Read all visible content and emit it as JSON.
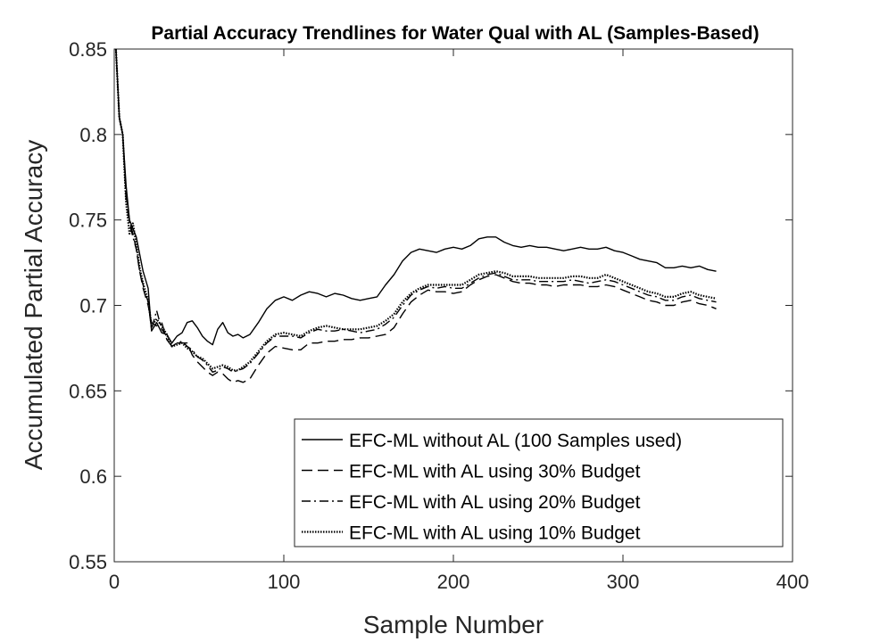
{
  "chart_data": {
    "type": "line",
    "title": "Partial Accuracy Trendlines for Water Qual with AL (Samples-Based)",
    "xlabel": "Sample Number",
    "ylabel": "Accumulated Partial Accuracy",
    "xlim": [
      0,
      400
    ],
    "ylim": [
      0.55,
      0.85
    ],
    "xticks": [
      0,
      100,
      200,
      300,
      400
    ],
    "xtick_labels": [
      "0",
      "100",
      "200",
      "300",
      "400"
    ],
    "yticks": [
      0.55,
      0.6,
      0.65,
      0.7,
      0.75,
      0.8,
      0.85
    ],
    "ytick_labels": [
      "0.55",
      "0.6",
      "0.65",
      "0.7",
      "0.75",
      "0.8",
      "0.85"
    ],
    "grid": false,
    "legend_position": "bottom-right",
    "series": [
      {
        "name": "EFC-ML without AL (100 Samples used)",
        "style": "solid",
        "color": "#000000",
        "x": [
          1,
          3,
          5,
          7,
          9,
          11,
          13,
          15,
          17,
          20,
          22,
          25,
          28,
          31,
          34,
          37,
          40,
          43,
          46,
          49,
          52,
          55,
          58,
          61,
          64,
          67,
          70,
          73,
          76,
          80,
          85,
          90,
          95,
          100,
          105,
          110,
          115,
          120,
          125,
          130,
          135,
          140,
          145,
          150,
          155,
          160,
          165,
          170,
          175,
          180,
          185,
          190,
          195,
          200,
          205,
          210,
          215,
          220,
          225,
          230,
          235,
          240,
          245,
          250,
          255,
          260,
          265,
          270,
          275,
          280,
          285,
          290,
          295,
          300,
          305,
          310,
          315,
          320,
          325,
          330,
          335,
          340,
          345,
          350,
          355
        ],
        "y": [
          0.85,
          0.81,
          0.8,
          0.77,
          0.75,
          0.745,
          0.74,
          0.73,
          0.72,
          0.71,
          0.685,
          0.69,
          0.684,
          0.683,
          0.678,
          0.682,
          0.684,
          0.69,
          0.691,
          0.687,
          0.682,
          0.679,
          0.677,
          0.686,
          0.69,
          0.684,
          0.682,
          0.683,
          0.681,
          0.683,
          0.69,
          0.698,
          0.703,
          0.705,
          0.703,
          0.706,
          0.708,
          0.707,
          0.705,
          0.707,
          0.706,
          0.704,
          0.703,
          0.704,
          0.705,
          0.712,
          0.718,
          0.726,
          0.731,
          0.733,
          0.732,
          0.731,
          0.733,
          0.734,
          0.733,
          0.735,
          0.739,
          0.74,
          0.74,
          0.737,
          0.735,
          0.734,
          0.735,
          0.734,
          0.734,
          0.733,
          0.732,
          0.733,
          0.734,
          0.733,
          0.733,
          0.734,
          0.732,
          0.731,
          0.729,
          0.727,
          0.726,
          0.725,
          0.722,
          0.722,
          0.723,
          0.722,
          0.723,
          0.721,
          0.72
        ]
      },
      {
        "name": "EFC-ML with AL using 30% Budget",
        "style": "dashed",
        "color": "#000000",
        "x": [
          1,
          3,
          5,
          7,
          9,
          11,
          13,
          15,
          17,
          20,
          22,
          25,
          28,
          31,
          34,
          37,
          40,
          43,
          46,
          49,
          52,
          55,
          58,
          61,
          64,
          67,
          70,
          73,
          76,
          80,
          85,
          90,
          95,
          100,
          105,
          110,
          115,
          120,
          125,
          130,
          135,
          140,
          145,
          150,
          155,
          160,
          165,
          170,
          175,
          180,
          185,
          190,
          195,
          200,
          205,
          210,
          215,
          220,
          225,
          230,
          235,
          240,
          245,
          250,
          255,
          260,
          265,
          270,
          275,
          280,
          285,
          290,
          295,
          300,
          305,
          310,
          315,
          320,
          325,
          330,
          335,
          340,
          345,
          350,
          355
        ],
        "y": [
          0.85,
          0.81,
          0.8,
          0.765,
          0.75,
          0.742,
          0.733,
          0.72,
          0.71,
          0.7,
          0.69,
          0.688,
          0.69,
          0.68,
          0.676,
          0.678,
          0.678,
          0.678,
          0.671,
          0.667,
          0.664,
          0.661,
          0.659,
          0.661,
          0.66,
          0.657,
          0.655,
          0.656,
          0.655,
          0.657,
          0.665,
          0.672,
          0.676,
          0.675,
          0.674,
          0.674,
          0.678,
          0.678,
          0.679,
          0.679,
          0.68,
          0.68,
          0.681,
          0.681,
          0.682,
          0.683,
          0.687,
          0.695,
          0.702,
          0.706,
          0.709,
          0.708,
          0.708,
          0.707,
          0.708,
          0.712,
          0.715,
          0.717,
          0.718,
          0.716,
          0.714,
          0.713,
          0.713,
          0.712,
          0.712,
          0.711,
          0.712,
          0.712,
          0.712,
          0.711,
          0.711,
          0.712,
          0.711,
          0.709,
          0.707,
          0.705,
          0.703,
          0.702,
          0.7,
          0.7,
          0.702,
          0.703,
          0.701,
          0.7,
          0.698
        ]
      },
      {
        "name": "EFC-ML with AL using 20% Budget",
        "style": "dashdot",
        "color": "#000000",
        "x": [
          1,
          3,
          5,
          7,
          9,
          11,
          13,
          15,
          17,
          20,
          22,
          25,
          28,
          31,
          34,
          37,
          40,
          43,
          46,
          49,
          52,
          55,
          58,
          61,
          64,
          67,
          70,
          73,
          76,
          80,
          85,
          90,
          95,
          100,
          105,
          110,
          115,
          120,
          125,
          130,
          135,
          140,
          145,
          150,
          155,
          160,
          165,
          170,
          175,
          180,
          185,
          190,
          195,
          200,
          205,
          210,
          215,
          220,
          225,
          230,
          235,
          240,
          245,
          250,
          255,
          260,
          265,
          270,
          275,
          280,
          285,
          290,
          295,
          300,
          305,
          310,
          315,
          320,
          325,
          330,
          335,
          340,
          345,
          350,
          355
        ],
        "y": [
          0.85,
          0.81,
          0.8,
          0.762,
          0.748,
          0.74,
          0.733,
          0.72,
          0.712,
          0.702,
          0.686,
          0.697,
          0.686,
          0.682,
          0.676,
          0.678,
          0.679,
          0.676,
          0.674,
          0.67,
          0.668,
          0.665,
          0.661,
          0.662,
          0.664,
          0.663,
          0.661,
          0.662,
          0.663,
          0.666,
          0.672,
          0.678,
          0.682,
          0.682,
          0.682,
          0.681,
          0.684,
          0.686,
          0.685,
          0.685,
          0.686,
          0.685,
          0.684,
          0.685,
          0.686,
          0.689,
          0.693,
          0.7,
          0.706,
          0.709,
          0.711,
          0.71,
          0.711,
          0.71,
          0.71,
          0.713,
          0.716,
          0.718,
          0.719,
          0.717,
          0.715,
          0.715,
          0.715,
          0.714,
          0.714,
          0.714,
          0.714,
          0.715,
          0.714,
          0.713,
          0.714,
          0.715,
          0.714,
          0.712,
          0.71,
          0.708,
          0.706,
          0.705,
          0.703,
          0.703,
          0.705,
          0.706,
          0.704,
          0.703,
          0.702
        ]
      },
      {
        "name": "EFC-ML with AL using 10% Budget",
        "style": "dotted",
        "color": "#000000",
        "x": [
          1,
          3,
          5,
          7,
          9,
          11,
          13,
          15,
          17,
          20,
          22,
          25,
          28,
          31,
          34,
          37,
          40,
          43,
          46,
          49,
          52,
          55,
          58,
          61,
          64,
          67,
          70,
          73,
          76,
          80,
          85,
          90,
          95,
          100,
          105,
          110,
          115,
          120,
          125,
          130,
          135,
          140,
          145,
          150,
          155,
          160,
          165,
          170,
          175,
          180,
          185,
          190,
          195,
          200,
          205,
          210,
          215,
          220,
          225,
          230,
          235,
          240,
          245,
          250,
          255,
          260,
          265,
          270,
          275,
          280,
          285,
          290,
          295,
          300,
          305,
          310,
          315,
          320,
          325,
          330,
          335,
          340,
          345,
          350,
          355
        ],
        "y": [
          0.85,
          0.81,
          0.8,
          0.76,
          0.742,
          0.748,
          0.736,
          0.722,
          0.713,
          0.703,
          0.688,
          0.692,
          0.688,
          0.683,
          0.676,
          0.677,
          0.678,
          0.675,
          0.673,
          0.67,
          0.669,
          0.666,
          0.663,
          0.664,
          0.665,
          0.664,
          0.662,
          0.662,
          0.664,
          0.667,
          0.673,
          0.679,
          0.683,
          0.684,
          0.683,
          0.682,
          0.685,
          0.687,
          0.688,
          0.687,
          0.686,
          0.686,
          0.686,
          0.687,
          0.688,
          0.691,
          0.695,
          0.702,
          0.707,
          0.71,
          0.712,
          0.712,
          0.712,
          0.712,
          0.712,
          0.715,
          0.718,
          0.719,
          0.72,
          0.719,
          0.717,
          0.717,
          0.717,
          0.716,
          0.716,
          0.716,
          0.716,
          0.717,
          0.717,
          0.716,
          0.716,
          0.718,
          0.716,
          0.714,
          0.712,
          0.71,
          0.708,
          0.707,
          0.705,
          0.705,
          0.707,
          0.708,
          0.706,
          0.705,
          0.704
        ]
      }
    ]
  }
}
